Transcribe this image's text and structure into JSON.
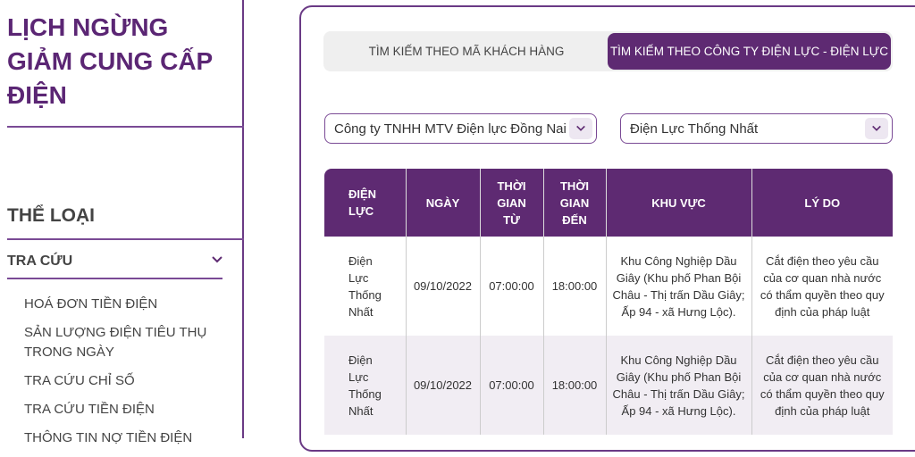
{
  "sidebar": {
    "title": "LỊCH NGỪNG GIẢM CUNG CẤP ĐIỆN",
    "category_heading": "THỂ LOẠI",
    "section": "TRA CỨU",
    "items": [
      "HOÁ ĐƠN TIỀN ĐIỆN",
      "SẢN LƯỢNG ĐIỆN TIÊU THỤ TRONG NGÀY",
      "TRA CỨU CHỈ SỐ",
      "TRA CỨU TIỀN ĐIỆN",
      "THÔNG TIN NỢ TIỀN ĐIỆN"
    ]
  },
  "tabs": [
    {
      "label": "TÌM KIẾM THEO MÃ KHÁCH HÀNG",
      "active": false
    },
    {
      "label": "TÌM KIẾM THEO CÔNG TY ĐIỆN LỰC - ĐIỆN LỰC",
      "active": true
    }
  ],
  "filters": {
    "company": "Công ty TNHH MTV Điện lực Đồng Nai",
    "unit": "Điện Lực Thống Nhất"
  },
  "table": {
    "headers": [
      "ĐIỆN LỰC",
      "NGÀY",
      "THỜI GIAN TỪ",
      "THỜI GIAN ĐẾN",
      "KHU VỰC",
      "LÝ DO"
    ],
    "rows": [
      [
        "Điện Lực Thống Nhất",
        "09/10/2022",
        "07:00:00",
        "18:00:00",
        "Khu Công Nghiệp Dầu Giây (Khu phố Phan Bội Châu - Thị trấn Dầu Giây; Ấp 94 - xã Hưng Lộc).",
        "Cắt điện theo yêu cầu của cơ quan nhà nước có thẩm quyền theo quy định của pháp luật"
      ],
      [
        "Điện Lực Thống Nhất",
        "09/10/2022",
        "07:00:00",
        "18:00:00",
        "Khu Công Nghiệp Dầu Giây (Khu phố Phan Bội Châu - Thị trấn Dầu Giây; Ấp 94 - xã Hưng Lộc).",
        "Cắt điện theo yêu cầu của cơ quan nhà nước có thẩm quyền theo quy định của pháp luật"
      ]
    ]
  },
  "colors": {
    "accent": "#5e2a72",
    "alt_row": "#f1edf3"
  }
}
